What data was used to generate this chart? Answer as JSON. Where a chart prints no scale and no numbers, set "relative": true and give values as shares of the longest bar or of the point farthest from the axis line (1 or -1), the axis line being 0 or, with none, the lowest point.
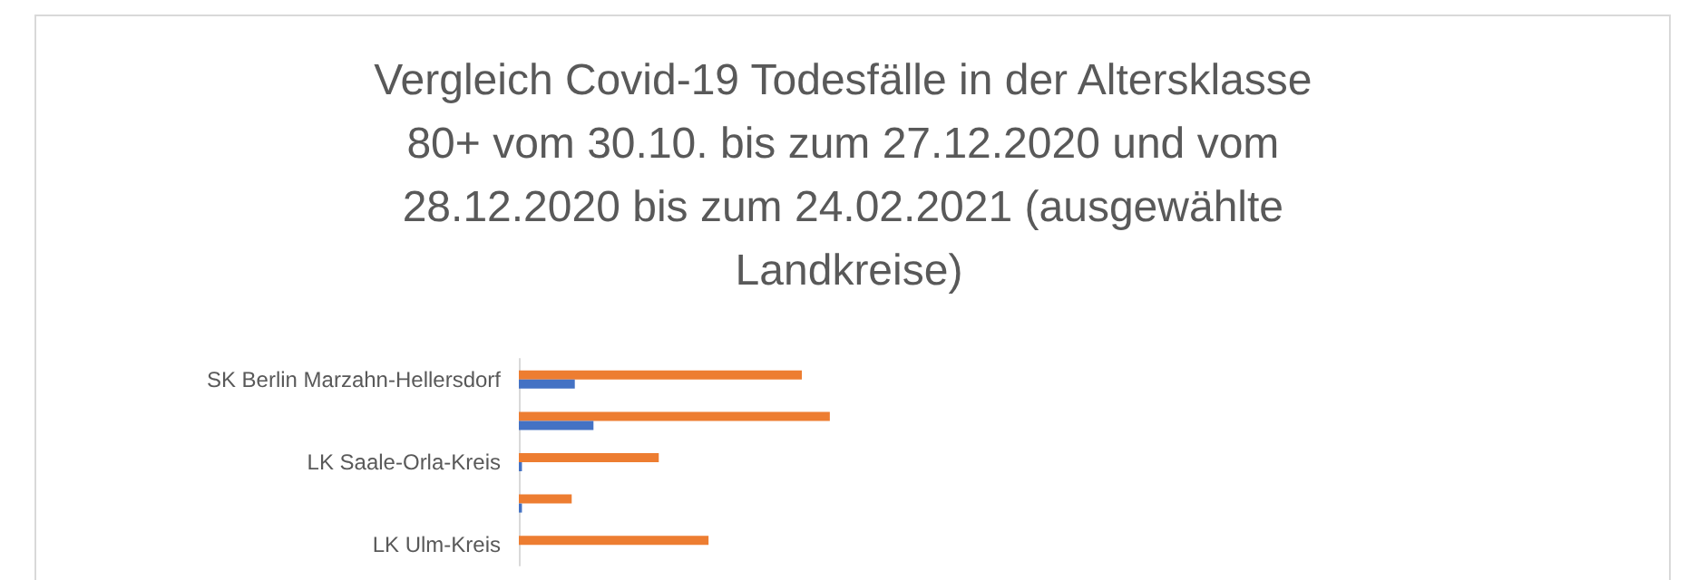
{
  "chart_data": {
    "type": "bar",
    "orientation": "horizontal",
    "relative": true,
    "title": "Vergleich Covid-19 Todesfälle in der Altersklasse 80+ vom 30.10. bis zum 27.12.2020 und vom 28.12.2020 bis zum 24.02.2021 (ausgewählte Landkreise)",
    "categories": [
      "SK Berlin Marzahn-Hellersdorf",
      null,
      "LK Saale-Orla-Kreis",
      null,
      "LK Ulm-Kreis"
    ],
    "series": [
      {
        "color": "#ed7d31",
        "values": [
          0.91,
          1,
          0.45,
          0.17,
          0.61
        ]
      },
      {
        "color": "#4472c4",
        "values": [
          0.18,
          0.24,
          0.01,
          0.01,
          null
        ]
      }
    ]
  }
}
